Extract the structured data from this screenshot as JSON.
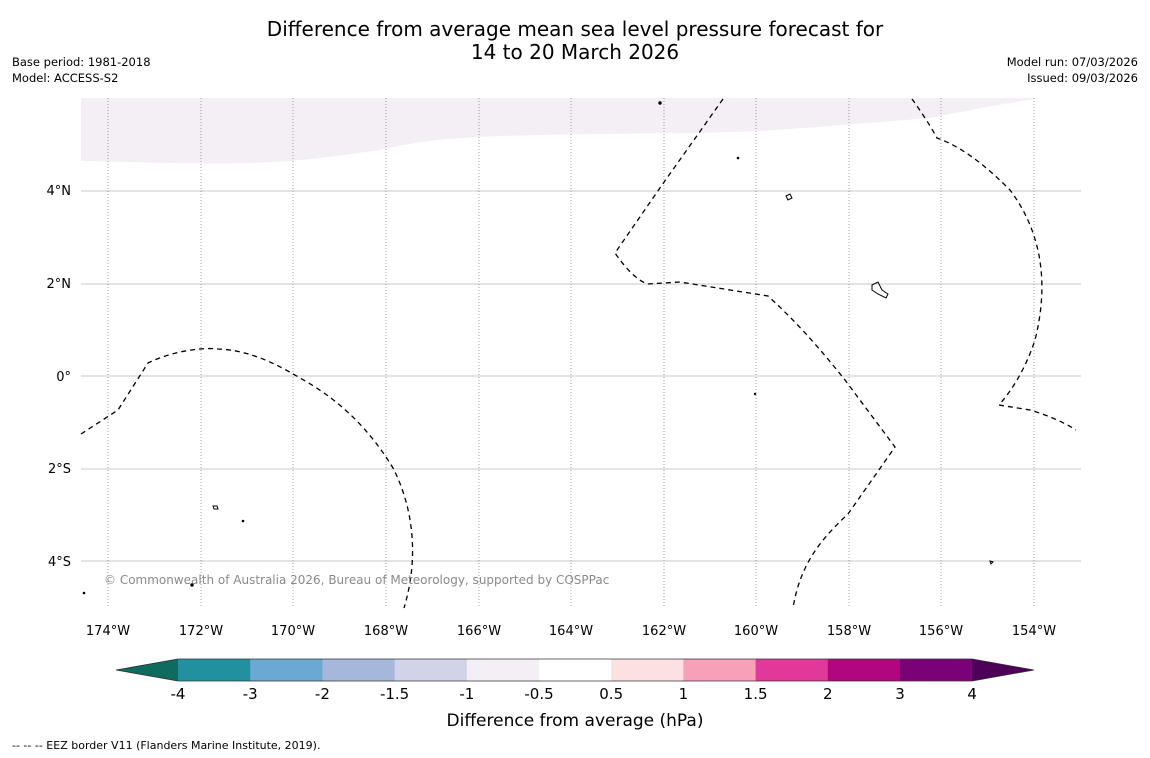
{
  "title": {
    "line1": "Difference from average mean sea level pressure forecast for",
    "line2": "14 to 20 March 2026"
  },
  "meta_left": {
    "base_period": "Base period: 1981-2018",
    "model": "Model: ACCESS-S2"
  },
  "meta_right": {
    "model_run": "Model run: 07/03/2026",
    "issued": "Issued: 09/03/2026"
  },
  "map": {
    "lon_labels": [
      "174°W",
      "172°W",
      "170°W",
      "168°W",
      "166°W",
      "164°W",
      "162°W",
      "160°W",
      "158°W",
      "156°W",
      "154°W"
    ],
    "lat_labels": [
      "4°N",
      "2°N",
      "0°",
      "2°S",
      "4°S"
    ],
    "copyright": "© Commonwealth of Australia 2026, Bureau of Meteorology, supported by COSPPac",
    "shaded_region_color": "#f3eff5"
  },
  "colorbar": {
    "label": "Difference from average (hPa)",
    "tick_labels": [
      "-4",
      "-3",
      "-2",
      "-1.5",
      "-1",
      "-0.5",
      "0.5",
      "1",
      "1.5",
      "2",
      "3",
      "4"
    ],
    "colors": [
      "#0d6b5f",
      "#2191a0",
      "#6aa9d2",
      "#a5b8db",
      "#d2d2e8",
      "#f3eff5",
      "#ffffff",
      "#fde0e1",
      "#f7a0b8",
      "#e0399a",
      "#b0067e",
      "#7a0177",
      "#4d0058"
    ]
  },
  "footer": {
    "legend_text": "--  --  -- EEZ border V11 (Flanders Marine Institute, 2019)."
  }
}
